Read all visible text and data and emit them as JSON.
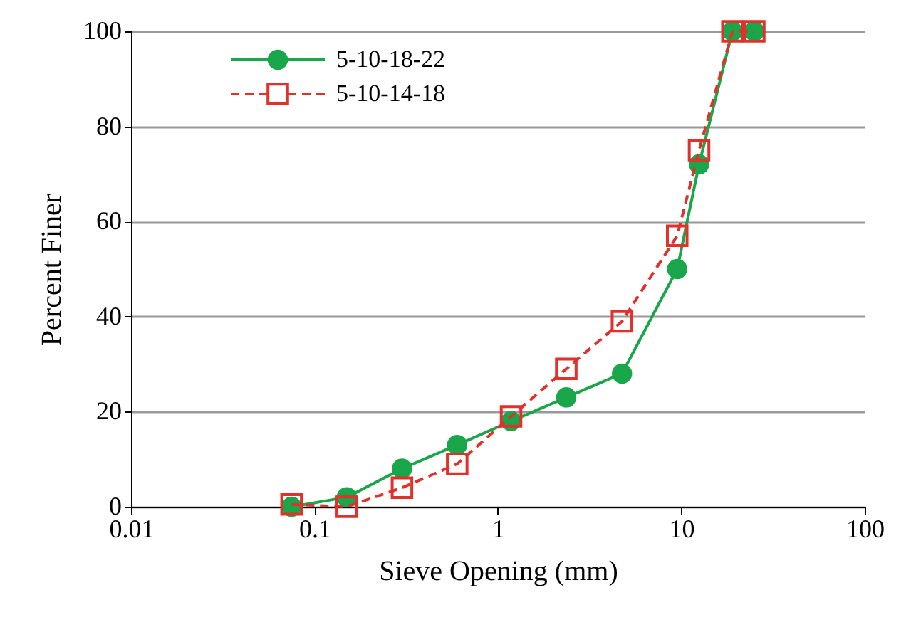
{
  "chart_data": {
    "type": "line",
    "xlabel": "Sieve Opening (mm)",
    "ylabel": "Percent Finer",
    "log": "x",
    "xlim": [
      0.01,
      100
    ],
    "xticks": [
      0.01,
      0.1,
      1,
      10,
      100
    ],
    "ylim": [
      0,
      100
    ],
    "yticks": [
      0,
      20,
      40,
      60,
      80,
      100
    ],
    "grid": "y",
    "legend": "top left",
    "x": [
      0.075,
      0.15,
      0.3,
      0.6,
      1.18,
      2.36,
      4.75,
      9.5,
      12.5,
      19,
      25
    ],
    "series": [
      {
        "name": "5-10-18-22",
        "color": "#1aa64a",
        "marker": "circle",
        "line_style": "solid",
        "values": [
          0,
          2,
          8,
          13,
          18,
          23,
          28,
          50,
          72,
          100,
          100
        ]
      },
      {
        "name": "5-10-14-18",
        "color": "#e0312b",
        "marker": "square",
        "line_style": "dashed",
        "values": [
          0.5,
          0,
          4,
          9,
          19,
          29,
          39,
          57,
          75,
          100,
          100
        ]
      }
    ]
  }
}
